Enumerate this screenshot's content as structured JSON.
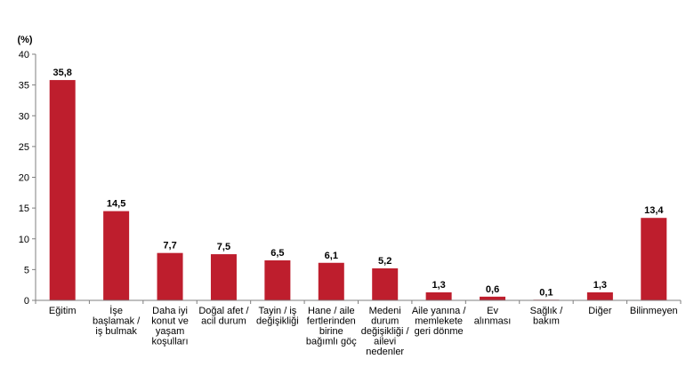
{
  "chart_data": {
    "type": "bar",
    "unit_label": "(%)",
    "categories": [
      [
        "Eğitim"
      ],
      [
        "İşe",
        "başlamak /",
        "iş bulmak"
      ],
      [
        "Daha iyi",
        "konut ve",
        "yaşam",
        "koşulları"
      ],
      [
        "Doğal afet /",
        "acil durum"
      ],
      [
        "Tayin / iş",
        "değişikliği"
      ],
      [
        "Hane / aile",
        "fertlerinden",
        "birine",
        "bağımlı göç"
      ],
      [
        "Medeni",
        "durum",
        "değişikliği /",
        "ailevi",
        "nedenler"
      ],
      [
        "Aile yanına /",
        "memlekete",
        "geri dönme"
      ],
      [
        "Ev",
        "alınması"
      ],
      [
        "Sağlık /",
        "bakım"
      ],
      [
        "Diğer"
      ],
      [
        "Bilinmeyen"
      ]
    ],
    "values": [
      35.8,
      14.5,
      7.7,
      7.5,
      6.5,
      6.1,
      5.2,
      1.3,
      0.6,
      0.1,
      1.3,
      13.4
    ],
    "value_labels": [
      "35,8",
      "14,5",
      "7,7",
      "7,5",
      "6,5",
      "6,1",
      "5,2",
      "1,3",
      "0,6",
      "0,1",
      "1,3",
      "13,4"
    ],
    "ylim": [
      0,
      40
    ],
    "yticks": [
      0,
      5,
      10,
      15,
      20,
      25,
      30,
      35,
      40
    ],
    "bar_color": "#be1e2d",
    "grid": false,
    "title": "",
    "xlabel": "",
    "ylabel": ""
  }
}
